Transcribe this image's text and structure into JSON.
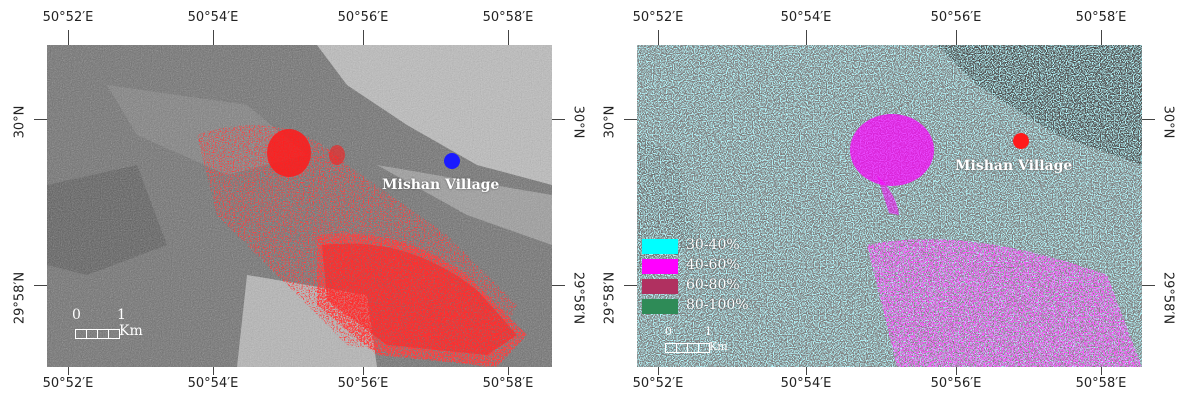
{
  "lon_ticks": [
    "50°52′E",
    "50°54′E",
    "50°56′E",
    "50°58′E"
  ],
  "lat_ticks": [
    "30°N",
    "29°58′N"
  ],
  "left_map": {
    "village_label": "Mishan Village",
    "marker_color": "#1a1aff",
    "scale": {
      "zero": "0",
      "one": "1",
      "unit": "Km"
    }
  },
  "right_map": {
    "village_label": "Mishan Village",
    "marker_color": "#ff1a1a",
    "legend": [
      {
        "label": "30-40%",
        "color": "#00ffff"
      },
      {
        "label": "40-60%",
        "color": "#ff00ff"
      },
      {
        "label": "60-80%",
        "color": "#b03060"
      },
      {
        "label": "80-100%",
        "color": "#2e8b57"
      }
    ],
    "scale": {
      "zero": "0",
      "one": "1",
      "unit": "Km"
    }
  }
}
